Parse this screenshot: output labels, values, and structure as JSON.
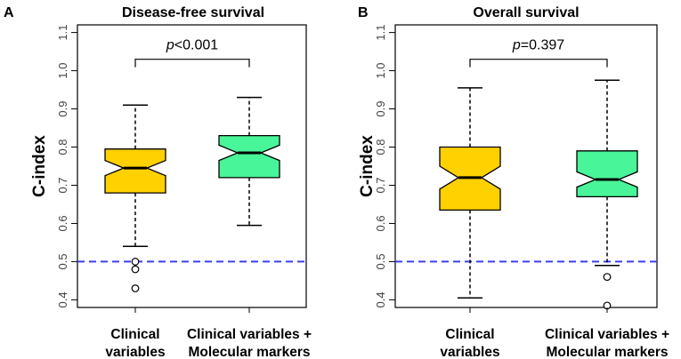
{
  "chart_data": [
    {
      "type": "boxplot",
      "panel_letter": "A",
      "title": "Disease-free survival",
      "ylabel": "C-index",
      "ylim": [
        0.38,
        1.12
      ],
      "yticks": [
        "0.4",
        "0.5",
        "0.6",
        "0.7",
        "0.8",
        "0.9",
        "1.0",
        "1.1"
      ],
      "reference_line": 0.5,
      "categories": [
        [
          "Clinical",
          "variables"
        ],
        [
          "Clinical variables +",
          "Molecular markers"
        ]
      ],
      "boxes": [
        {
          "whisker_low": 0.54,
          "q1": 0.68,
          "median": 0.745,
          "q3": 0.795,
          "whisker_high": 0.91,
          "notch_low": 0.725,
          "notch_high": 0.765,
          "outliers": [
            0.5,
            0.48,
            0.43
          ],
          "color": "#FFD100"
        },
        {
          "whisker_low": 0.595,
          "q1": 0.72,
          "median": 0.785,
          "q3": 0.83,
          "whisker_high": 0.93,
          "notch_low": 0.765,
          "notch_high": 0.805,
          "outliers": [],
          "color": "#48F598"
        }
      ],
      "comparison": {
        "y": 1.03,
        "p_prefix": "p",
        "p_rest": "<0.001"
      }
    },
    {
      "type": "boxplot",
      "panel_letter": "B",
      "title": "Overall survival",
      "ylabel": "C-index",
      "ylim": [
        0.38,
        1.12
      ],
      "yticks": [
        "0.4",
        "0.5",
        "0.6",
        "0.7",
        "0.8",
        "0.9",
        "1.0",
        "1.1"
      ],
      "reference_line": 0.5,
      "categories": [
        [
          "Clinical",
          "variables"
        ],
        [
          "Clinical variables +",
          "Molecular markers"
        ]
      ],
      "boxes": [
        {
          "whisker_low": 0.405,
          "q1": 0.635,
          "median": 0.72,
          "q3": 0.8,
          "whisker_high": 0.955,
          "notch_low": 0.69,
          "notch_high": 0.75,
          "outliers": [],
          "color": "#FFD100"
        },
        {
          "whisker_low": 0.49,
          "q1": 0.67,
          "median": 0.715,
          "q3": 0.79,
          "whisker_high": 0.975,
          "notch_low": 0.695,
          "notch_high": 0.735,
          "outliers": [
            0.46,
            0.385
          ],
          "color": "#48F598"
        }
      ],
      "comparison": {
        "y": 1.03,
        "p_prefix": "p",
        "p_rest": "=0.397"
      }
    }
  ]
}
